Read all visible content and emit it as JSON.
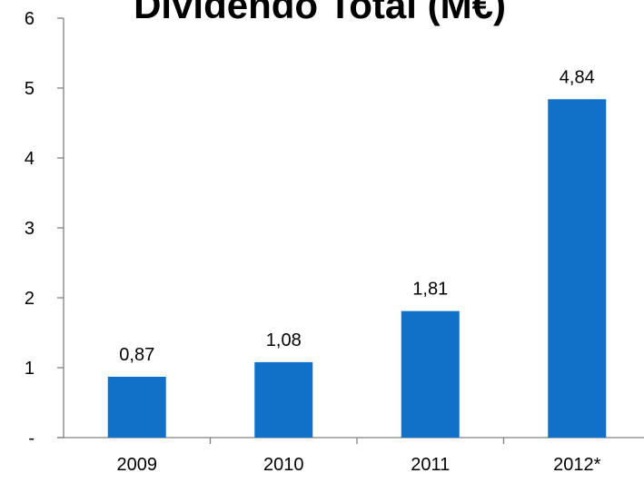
{
  "chart_data": {
    "type": "bar",
    "title": "Dividendo Total (M€)",
    "categories": [
      "2009",
      "2010",
      "2011",
      "2012*"
    ],
    "series": [
      {
        "values": [
          0.87,
          1.08,
          1.81,
          4.84
        ],
        "data_labels": [
          "0,87",
          "1,08",
          "1,81",
          "4,84"
        ]
      }
    ],
    "ylim": [
      0,
      6
    ],
    "y_ticks": [
      0,
      1,
      2,
      3,
      4,
      5,
      6
    ],
    "y_tick_labels": [
      "-",
      "1",
      "2",
      "3",
      "4",
      "5",
      "6"
    ],
    "xlabel": "",
    "ylabel": "",
    "grid": false,
    "legend": "none",
    "colors": {
      "bar": "#1170C8",
      "axis": "#808080",
      "text": "#000000"
    }
  }
}
